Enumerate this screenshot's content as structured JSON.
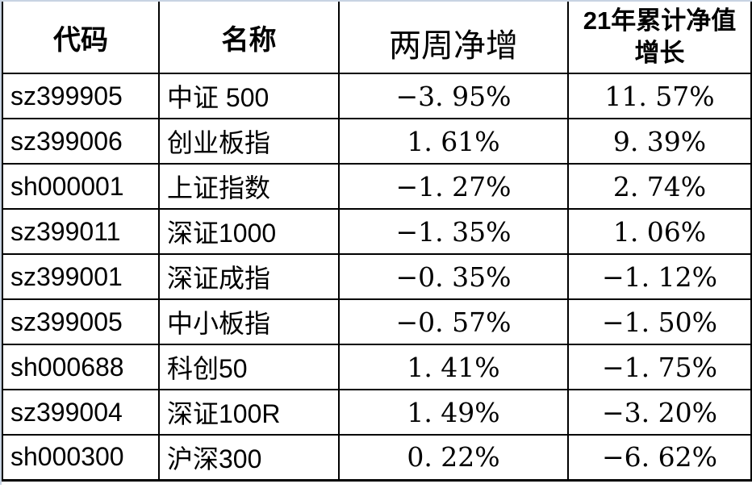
{
  "header": {
    "code": "代码",
    "name": "名称",
    "two_week": "两周净增",
    "ytd_label": "21年累计净值增长",
    "ytd_lines": [
      "21年累计净值",
      "增长"
    ]
  },
  "rows": [
    {
      "code": "sz399905",
      "name": "中证 500",
      "two_week": "−3. 95%",
      "ytd": "11. 57%"
    },
    {
      "code": "sz399006",
      "name": "创业板指",
      "two_week": "1. 61%",
      "ytd": "9. 39%"
    },
    {
      "code": "sh000001",
      "name": "上证指数",
      "two_week": "−1. 27%",
      "ytd": "2. 74%"
    },
    {
      "code": "sz399011",
      "name": "深证1000",
      "two_week": "−1. 35%",
      "ytd": "1. 06%"
    },
    {
      "code": "sz399001",
      "name": "深证成指",
      "two_week": "−0. 35%",
      "ytd": "−1. 12%"
    },
    {
      "code": "sz399005",
      "name": "中小板指",
      "two_week": "−0. 57%",
      "ytd": "−1. 50%"
    },
    {
      "code": "sh000688",
      "name": "科创50",
      "two_week": "1. 41%",
      "ytd": "−1. 75%"
    },
    {
      "code": "sz399004",
      "name": "深证100R",
      "two_week": "1. 49%",
      "ytd": "−3. 20%"
    },
    {
      "code": "sh000300",
      "name": "沪深300",
      "two_week": "0. 22%",
      "ytd": "−6. 62%"
    }
  ],
  "colors": {
    "text": "#000000",
    "grid_border": "#000000",
    "sheet_edge": "#c8d3e2",
    "background": "#ffffff"
  },
  "chart_data": {
    "type": "table",
    "columns": [
      "代码",
      "名称",
      "两周净增",
      "21年累计净值增长"
    ],
    "units": "%",
    "rows": [
      [
        "sz399905",
        "中证 500",
        -3.95,
        11.57
      ],
      [
        "sz399006",
        "创业板指",
        1.61,
        9.39
      ],
      [
        "sh000001",
        "上证指数",
        -1.27,
        2.74
      ],
      [
        "sz399011",
        "深证1000",
        -1.35,
        1.06
      ],
      [
        "sz399001",
        "深证成指",
        -0.35,
        -1.12
      ],
      [
        "sz399005",
        "中小板指",
        -0.57,
        -1.5
      ],
      [
        "sh000688",
        "科创50",
        1.41,
        -1.75
      ],
      [
        "sz399004",
        "深证100R",
        1.49,
        -3.2
      ],
      [
        "sh000300",
        "沪深300",
        0.22,
        -6.62
      ]
    ]
  }
}
